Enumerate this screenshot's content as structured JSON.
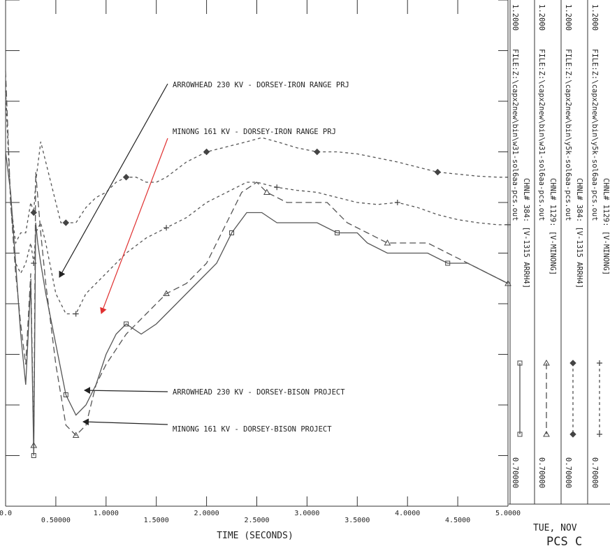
{
  "chart_data": {
    "type": "line",
    "xlabel": "TIME (SECONDS)",
    "xlim": [
      0,
      5.0
    ],
    "ylim": [
      0.7,
      1.2
    ],
    "x_ticks_upper": [
      "0.0",
      "1.0000",
      "2.0000",
      "3.0000",
      "4.0000",
      "5.0000"
    ],
    "x_ticks_lower": [
      "0.50000",
      "1.5000",
      "2.5000",
      "3.5000",
      "4.5000"
    ],
    "series": [
      {
        "name": "CHNL# 384: [V-1315 ARRH4]",
        "file": "FILE:Z:\\capx2new\\bin\\w31-sol6aa-pcs.out",
        "scale_max": "1.2000",
        "scale_min": "0.70000",
        "style": "solid",
        "marker": "square",
        "color": "#555555",
        "points": [
          [
            0,
            1.05
          ],
          [
            0.05,
            1.01
          ],
          [
            0.1,
            0.94
          ],
          [
            0.15,
            0.87
          ],
          [
            0.2,
            0.82
          ],
          [
            0.25,
            0.92
          ],
          [
            0.28,
            0.75
          ],
          [
            0.3,
            0.98
          ],
          [
            0.32,
            0.96
          ],
          [
            0.35,
            0.94
          ],
          [
            0.4,
            0.91
          ],
          [
            0.5,
            0.86
          ],
          [
            0.6,
            0.81
          ],
          [
            0.7,
            0.79
          ],
          [
            0.8,
            0.8
          ],
          [
            0.9,
            0.82
          ],
          [
            1.0,
            0.85
          ],
          [
            1.1,
            0.87
          ],
          [
            1.2,
            0.88
          ],
          [
            1.35,
            0.87
          ],
          [
            1.5,
            0.88
          ],
          [
            1.7,
            0.9
          ],
          [
            1.9,
            0.92
          ],
          [
            2.1,
            0.94
          ],
          [
            2.25,
            0.97
          ],
          [
            2.4,
            0.99
          ],
          [
            2.55,
            0.99
          ],
          [
            2.7,
            0.98
          ],
          [
            2.9,
            0.98
          ],
          [
            3.1,
            0.98
          ],
          [
            3.3,
            0.97
          ],
          [
            3.5,
            0.97
          ],
          [
            3.6,
            0.96
          ],
          [
            3.8,
            0.95
          ],
          [
            4.0,
            0.95
          ],
          [
            4.2,
            0.95
          ],
          [
            4.4,
            0.94
          ],
          [
            4.6,
            0.94
          ],
          [
            4.8,
            0.93
          ],
          [
            5.0,
            0.92
          ]
        ]
      },
      {
        "name": "CHNL# 1129: [V-MINONG]",
        "file": "FILE:Z:\\capx2new\\bin\\w31-sol6aa-pcs.out",
        "scale_max": "1.2000",
        "scale_min": "0.70000",
        "style": "long-dash",
        "marker": "triangle",
        "color": "#555555",
        "points": [
          [
            0,
            1.13
          ],
          [
            0.05,
            1.0
          ],
          [
            0.1,
            0.93
          ],
          [
            0.15,
            0.88
          ],
          [
            0.2,
            0.84
          ],
          [
            0.25,
            0.93
          ],
          [
            0.28,
            0.76
          ],
          [
            0.3,
            1.03
          ],
          [
            0.35,
            0.97
          ],
          [
            0.4,
            0.92
          ],
          [
            0.5,
            0.84
          ],
          [
            0.6,
            0.78
          ],
          [
            0.7,
            0.77
          ],
          [
            0.8,
            0.78
          ],
          [
            0.9,
            0.82
          ],
          [
            1.0,
            0.84
          ],
          [
            1.2,
            0.87
          ],
          [
            1.4,
            0.89
          ],
          [
            1.6,
            0.91
          ],
          [
            1.8,
            0.92
          ],
          [
            2.0,
            0.94
          ],
          [
            2.2,
            0.98
          ],
          [
            2.35,
            1.01
          ],
          [
            2.5,
            1.02
          ],
          [
            2.6,
            1.01
          ],
          [
            2.8,
            1.0
          ],
          [
            3.0,
            1.0
          ],
          [
            3.2,
            1.0
          ],
          [
            3.4,
            0.98
          ],
          [
            3.6,
            0.97
          ],
          [
            3.8,
            0.96
          ],
          [
            4.0,
            0.96
          ],
          [
            4.2,
            0.96
          ],
          [
            4.4,
            0.95
          ],
          [
            4.6,
            0.94
          ],
          [
            4.8,
            0.93
          ],
          [
            5.0,
            0.92
          ]
        ]
      },
      {
        "name": "CHNL# 384: [V-1315 ARRH4]",
        "file": "FILE:Z:\\capx2new\\bin\\y5k-sol6aa-pcs.out",
        "scale_max": "1.2000",
        "scale_min": "0.70000",
        "style": "short-dash",
        "marker": "diamond",
        "color": "#555555",
        "points": [
          [
            0,
            1.11
          ],
          [
            0.05,
            1.0
          ],
          [
            0.1,
            0.96
          ],
          [
            0.15,
            0.97
          ],
          [
            0.2,
            0.97
          ],
          [
            0.25,
            1.0
          ],
          [
            0.28,
            0.99
          ],
          [
            0.3,
            1.02
          ],
          [
            0.35,
            1.06
          ],
          [
            0.4,
            1.04
          ],
          [
            0.5,
            1.0
          ],
          [
            0.55,
            0.98
          ],
          [
            0.6,
            0.98
          ],
          [
            0.7,
            0.98
          ],
          [
            0.8,
            0.995
          ],
          [
            0.9,
            1.005
          ],
          [
            1.0,
            1.01
          ],
          [
            1.1,
            1.02
          ],
          [
            1.2,
            1.025
          ],
          [
            1.3,
            1.025
          ],
          [
            1.4,
            1.02
          ],
          [
            1.5,
            1.02
          ],
          [
            1.6,
            1.025
          ],
          [
            1.8,
            1.04
          ],
          [
            2.0,
            1.05
          ],
          [
            2.2,
            1.055
          ],
          [
            2.4,
            1.06
          ],
          [
            2.55,
            1.064
          ],
          [
            2.7,
            1.06
          ],
          [
            2.9,
            1.054
          ],
          [
            3.1,
            1.05
          ],
          [
            3.3,
            1.05
          ],
          [
            3.5,
            1.048
          ],
          [
            3.7,
            1.044
          ],
          [
            3.9,
            1.04
          ],
          [
            4.1,
            1.035
          ],
          [
            4.3,
            1.03
          ],
          [
            4.5,
            1.028
          ],
          [
            4.7,
            1.026
          ],
          [
            4.9,
            1.025
          ],
          [
            5.0,
            1.025
          ]
        ]
      },
      {
        "name": "CHNL# 1129: [V-MINONG]",
        "file": "FILE:Z:\\capx2new\\bin\\y5k-sol6aa-pcs.out",
        "scale_max": "1.2000",
        "scale_min": "0.70000",
        "style": "short-dash",
        "marker": "plus",
        "color": "#555555",
        "points": [
          [
            0,
            1.11
          ],
          [
            0.05,
            1.0
          ],
          [
            0.1,
            0.94
          ],
          [
            0.15,
            0.93
          ],
          [
            0.2,
            0.94
          ],
          [
            0.25,
            0.96
          ],
          [
            0.28,
            0.94
          ],
          [
            0.3,
            0.97
          ],
          [
            0.35,
            0.98
          ],
          [
            0.4,
            0.96
          ],
          [
            0.5,
            0.91
          ],
          [
            0.6,
            0.89
          ],
          [
            0.7,
            0.89
          ],
          [
            0.8,
            0.91
          ],
          [
            0.9,
            0.92
          ],
          [
            1.0,
            0.93
          ],
          [
            1.2,
            0.95
          ],
          [
            1.4,
            0.965
          ],
          [
            1.6,
            0.975
          ],
          [
            1.8,
            0.985
          ],
          [
            2.0,
            1.0
          ],
          [
            2.2,
            1.01
          ],
          [
            2.4,
            1.02
          ],
          [
            2.5,
            1.02
          ],
          [
            2.7,
            1.015
          ],
          [
            2.9,
            1.012
          ],
          [
            3.1,
            1.01
          ],
          [
            3.3,
            1.005
          ],
          [
            3.5,
            1.0
          ],
          [
            3.7,
            0.998
          ],
          [
            3.9,
            1.0
          ],
          [
            4.1,
            0.995
          ],
          [
            4.3,
            0.988
          ],
          [
            4.5,
            0.983
          ],
          [
            4.7,
            0.98
          ],
          [
            4.9,
            0.978
          ],
          [
            5.0,
            0.978
          ]
        ]
      }
    ],
    "annotations": [
      {
        "text": "ARROWHEAD 230 KV - DORSEY-IRON RANGE PRJ",
        "color": "#222222"
      },
      {
        "text": "MINONG 161 KV - DORSEY-IRON RANGE PRJ",
        "color": "#e03030"
      },
      {
        "text": "ARROWHEAD 230 KV - DORSEY-BISON PROJECT",
        "color": "#222222"
      },
      {
        "text": "MINONG 161 KV - DORSEY-BISON PROJECT",
        "color": "#222222"
      }
    ]
  },
  "footer": {
    "date": "TUE, NOV",
    "title": "PCS  C"
  }
}
